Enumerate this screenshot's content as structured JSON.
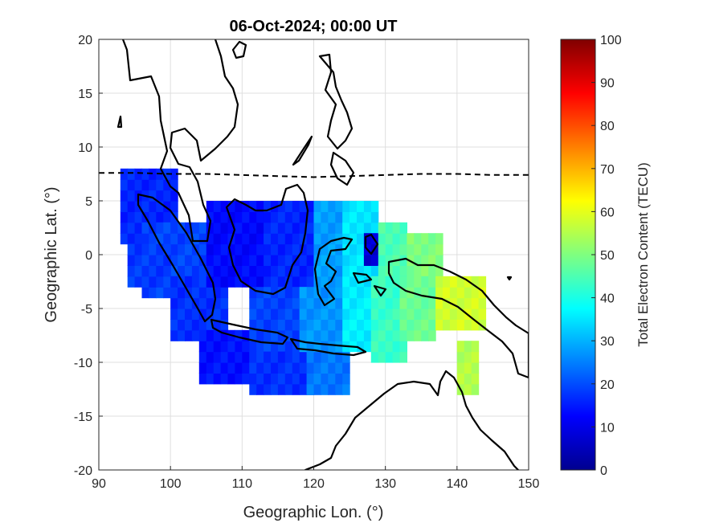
{
  "chart_data": {
    "type": "heatmap",
    "title": "06-Oct-2024; 00:00 UT",
    "xlabel": "Geographic Lon. (°)",
    "ylabel": "Geographic Lat. (°)",
    "xlim": [
      90,
      150
    ],
    "ylim": [
      -20,
      20
    ],
    "x_ticks": [
      90,
      100,
      110,
      120,
      130,
      140,
      150
    ],
    "y_ticks": [
      20,
      15,
      10,
      5,
      0,
      -5,
      -10,
      -15,
      -20
    ],
    "grid": true,
    "colormap": "jet",
    "colorbar": {
      "label": "Total Electron Content (TECU)",
      "limits": [
        0,
        100
      ],
      "ticks": [
        100,
        90,
        80,
        70,
        60,
        50,
        40,
        30,
        20,
        10,
        0
      ]
    },
    "overlays": [
      "coastlines",
      "magnetic equator (dashed)"
    ],
    "magnetic_equator": [
      [
        90,
        7.6
      ],
      [
        95,
        7.6
      ],
      [
        100,
        7.5
      ],
      [
        105,
        7.5
      ],
      [
        110,
        7.4
      ],
      [
        115,
        7.3
      ],
      [
        120,
        7.2
      ],
      [
        125,
        7.3
      ],
      [
        130,
        7.4
      ],
      [
        135,
        7.5
      ],
      [
        140,
        7.5
      ],
      [
        145,
        7.4
      ],
      [
        150,
        7.4
      ]
    ],
    "tec_regions": [
      {
        "lon": [
          93,
          101
        ],
        "lat": [
          1,
          8
        ],
        "tec": 16
      },
      {
        "lon": [
          96,
          105
        ],
        "lat": [
          -4,
          3
        ],
        "tec": 19
      },
      {
        "lon": [
          94,
          100
        ],
        "lat": [
          -3,
          1
        ],
        "tec": 18
      },
      {
        "lon": [
          100,
          108
        ],
        "lat": [
          -8,
          -2
        ],
        "tec": 17
      },
      {
        "lon": [
          104,
          112
        ],
        "lat": [
          -12,
          -7
        ],
        "tec": 14
      },
      {
        "lon": [
          105,
          114
        ],
        "lat": [
          -3,
          5
        ],
        "tec": 13
      },
      {
        "lon": [
          113,
          121
        ],
        "lat": [
          -3,
          5
        ],
        "tec": 16
      },
      {
        "lon": [
          111,
          119
        ],
        "lat": [
          -9,
          -3
        ],
        "tec": 19
      },
      {
        "lon": [
          111,
          120
        ],
        "lat": [
          -13,
          -9
        ],
        "tec": 17
      },
      {
        "lon": [
          119,
          125
        ],
        "lat": [
          -13,
          -9
        ],
        "tec": 24
      },
      {
        "lon": [
          118,
          124
        ],
        "lat": [
          -9,
          -3
        ],
        "tec": 27
      },
      {
        "lon": [
          120,
          125
        ],
        "lat": [
          -3,
          5
        ],
        "tec": 28
      },
      {
        "lon": [
          124,
          129
        ],
        "lat": [
          -3,
          5
        ],
        "tec": 35
      },
      {
        "lon": [
          124,
          129
        ],
        "lat": [
          -9,
          -3
        ],
        "tec": 36
      },
      {
        "lon": [
          127,
          130
        ],
        "lat": [
          -1,
          2
        ],
        "tec": 8
      },
      {
        "lon": [
          129,
          133
        ],
        "lat": [
          -2,
          3
        ],
        "tec": 45
      },
      {
        "lon": [
          128,
          133
        ],
        "lat": [
          -10,
          -2
        ],
        "tec": 43
      },
      {
        "lon": [
          133,
          138
        ],
        "lat": [
          -3,
          2
        ],
        "tec": 50
      },
      {
        "lon": [
          132,
          137
        ],
        "lat": [
          -8,
          -2
        ],
        "tec": 48
      },
      {
        "lon": [
          137,
          144
        ],
        "lat": [
          -7,
          -2
        ],
        "tec": 58
      },
      {
        "lon": [
          140,
          143
        ],
        "lat": [
          -13,
          -8
        ],
        "tec": 55
      }
    ]
  }
}
